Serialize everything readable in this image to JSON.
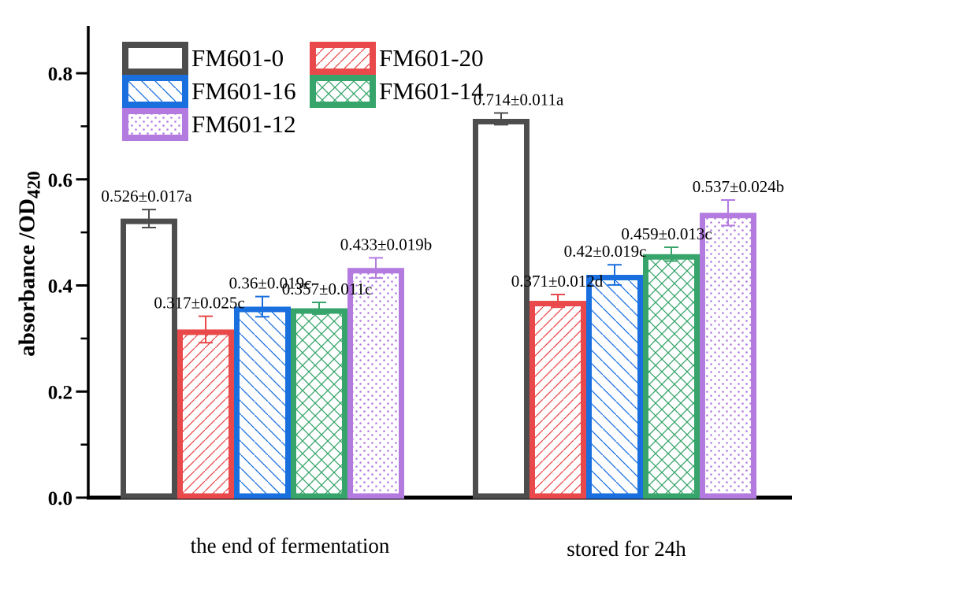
{
  "figure": {
    "background": "#ffffff",
    "axis_color": "#000000"
  },
  "chart_data": {
    "type": "bar",
    "title": "",
    "ylabel_main": "absorbance /OD",
    "ylabel_sub": "420",
    "xlabel": "",
    "ylim": [
      0,
      0.88
    ],
    "y_major_ticks": [
      0.0,
      0.2,
      0.4,
      0.6,
      0.8
    ],
    "y_major_tick_labels": [
      "0.0",
      "0.2",
      "0.4",
      "0.6",
      "0.8"
    ],
    "y_minor_ticks": [
      0.1,
      0.3,
      0.5,
      0.7
    ],
    "grid": false,
    "legend_position": "top-left",
    "error_bars": true,
    "category_labels": [
      "the end of fermentation",
      "stored for 24h"
    ],
    "category_label_dx": [
      35,
      15
    ],
    "series": [
      {
        "name": "FM601-0",
        "color": "#4d4d4d",
        "hatch": "none",
        "values": [
          0.526,
          0.714
        ],
        "errors": [
          0.017,
          0.011
        ],
        "point_labels": [
          "0.526±0.017a",
          "0.714±0.011a"
        ],
        "label_dx": [
          -3,
          22
        ]
      },
      {
        "name": "FM601-20",
        "color": "#e9494a",
        "hatch": "diag-up",
        "values": [
          0.317,
          0.371
        ],
        "errors": [
          0.025,
          0.012
        ],
        "point_labels": [
          "0.317±0.025c",
          "0.371±0.012d"
        ],
        "label_dx": [
          -8,
          -1
        ]
      },
      {
        "name": "FM601-16",
        "color": "#1a6fdf",
        "hatch": "diag-down",
        "values": [
          0.36,
          0.42
        ],
        "errors": [
          0.019,
          0.019
        ],
        "point_labels": [
          "0.36±0.019c",
          "0.42±0.019c"
        ],
        "label_dx": [
          10,
          -12
        ]
      },
      {
        "name": "FM601-14",
        "color": "#37a56b",
        "hatch": "cross",
        "values": [
          0.357,
          0.459
        ],
        "errors": [
          0.011,
          0.013
        ],
        "point_labels": [
          "0.357±0.011c",
          "0.459±0.013c"
        ],
        "label_dx": [
          10,
          -6
        ]
      },
      {
        "name": "FM601-12",
        "color": "#b37ae0",
        "hatch": "dot",
        "values": [
          0.433,
          0.537
        ],
        "errors": [
          0.019,
          0.024
        ],
        "point_labels": [
          "0.433±0.019b",
          "0.537±0.024b"
        ],
        "label_dx": [
          13,
          13
        ]
      }
    ]
  }
}
